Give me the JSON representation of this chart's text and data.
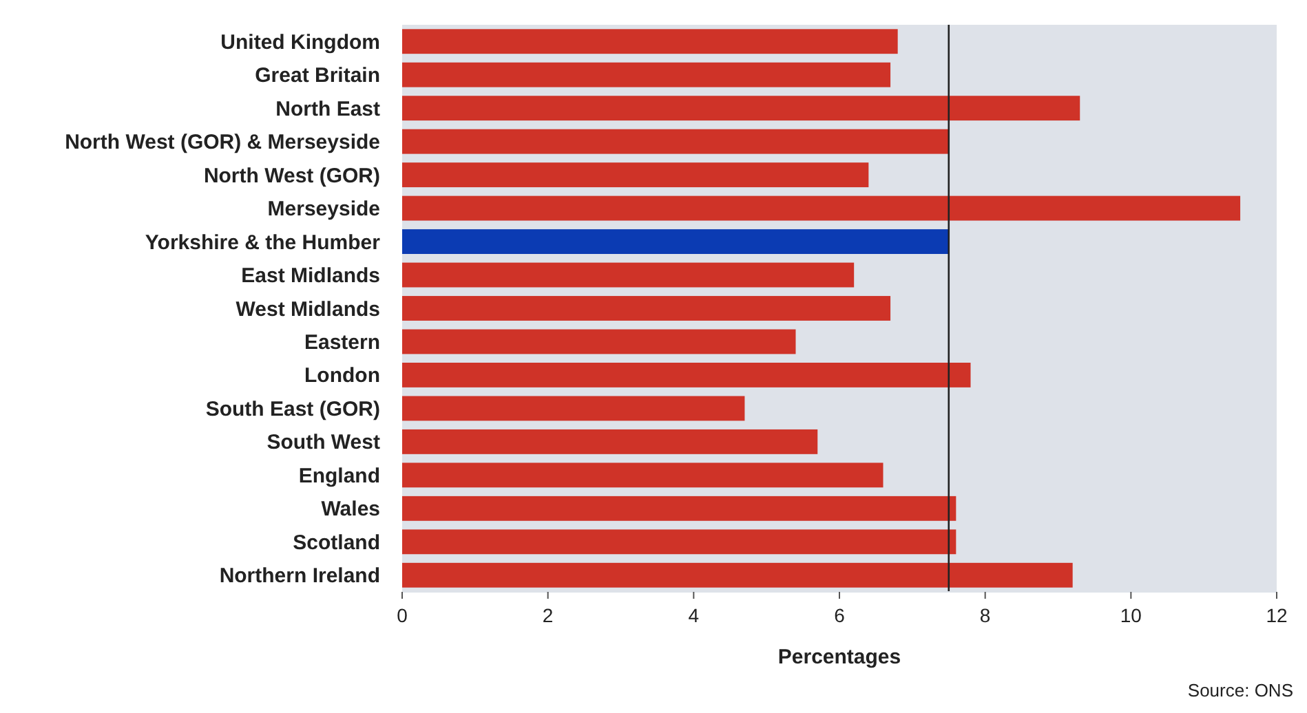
{
  "chart_data": {
    "type": "bar",
    "orientation": "horizontal",
    "xlabel": "Percentages",
    "categories": [
      "United Kingdom",
      "Great Britain",
      "North East",
      "North West (GOR) & Merseyside",
      "North West (GOR)",
      "Merseyside",
      "Yorkshire & the Humber",
      "East Midlands",
      "West Midlands",
      "Eastern",
      "London",
      "South East (GOR)",
      "South West",
      "England",
      "Wales",
      "Scotland",
      "Northern Ireland"
    ],
    "values": [
      6.8,
      6.7,
      9.3,
      7.5,
      6.4,
      11.5,
      7.5,
      6.2,
      6.7,
      5.4,
      7.8,
      4.7,
      5.7,
      6.6,
      7.6,
      7.6,
      9.2
    ],
    "colors": [
      "#cf3328",
      "#cf3328",
      "#cf3328",
      "#cf3328",
      "#cf3328",
      "#cf3328",
      "#0b3bb3",
      "#cf3328",
      "#cf3328",
      "#cf3328",
      "#cf3328",
      "#cf3328",
      "#cf3328",
      "#cf3328",
      "#cf3328",
      "#cf3328",
      "#cf3328"
    ],
    "xlim": [
      0,
      12
    ],
    "xticks": [
      0,
      2,
      4,
      6,
      8,
      10,
      12
    ],
    "grid": false,
    "ref_lines": [
      {
        "axis": "x",
        "value": 7.5,
        "color": "#222222"
      }
    ],
    "annotations": [
      "Source: ONS"
    ]
  }
}
